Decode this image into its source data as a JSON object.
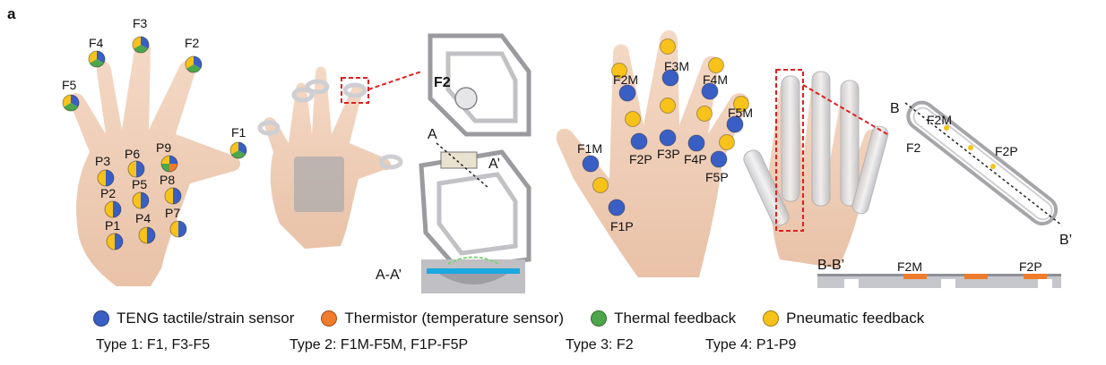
{
  "panel_letter": "a",
  "colors": {
    "teng": "#3a5fc4",
    "thermistor": "#ef7b2c",
    "thermal": "#4ea64a",
    "pneumatic": "#f7c21a",
    "skin": "#efcdb6",
    "glove": "#d8d8da",
    "highlight": "#e02020"
  },
  "hand1_labels": {
    "f1": "F1",
    "f2": "F2",
    "f3": "F3",
    "f4": "F4",
    "f5": "F5",
    "p1": "P1",
    "p2": "P2",
    "p3": "P3",
    "p4": "P4",
    "p5": "P5",
    "p6": "P6",
    "p7": "P7",
    "p8": "P8",
    "p9": "P9"
  },
  "ring_detail": {
    "f2_label": "F2",
    "a_label": "A",
    "a_prime_label": "A’",
    "section_label": "A-A’"
  },
  "hand2_labels": {
    "f1m": "F1M",
    "f2m": "F2M",
    "f3m": "F3M",
    "f4m": "F4M",
    "f5m": "F5M",
    "f1p": "F1P",
    "f2p": "F2P",
    "f3p": "F3P",
    "f4p": "F4P",
    "f5p": "F5P"
  },
  "finger_detail": {
    "b_label": "B",
    "b_prime_label": "B’",
    "f2m_label": "F2M",
    "f2_label": "F2",
    "f2p_label": "F2P",
    "section_label": "B-B’",
    "section_f2m": "F2M",
    "section_f2p": "F2P"
  },
  "legend": [
    {
      "label": "TENG tactile/strain sensor",
      "color_key": "teng",
      "icon": "blue-dot-icon"
    },
    {
      "label": "Thermistor (temperature sensor)",
      "color_key": "thermistor",
      "icon": "orange-dot-icon"
    },
    {
      "label": "Thermal feedback",
      "color_key": "thermal",
      "icon": "green-dot-icon"
    },
    {
      "label": "Pneumatic feedback",
      "color_key": "pneumatic",
      "icon": "yellow-dot-icon"
    }
  ],
  "types": {
    "type1": "Type 1: F1, F3-F5",
    "type2": "Type 2: F1M-F5M, F1P-F5P",
    "type3": "Type 3: F2",
    "type4": "Type 4: P1-P9"
  }
}
